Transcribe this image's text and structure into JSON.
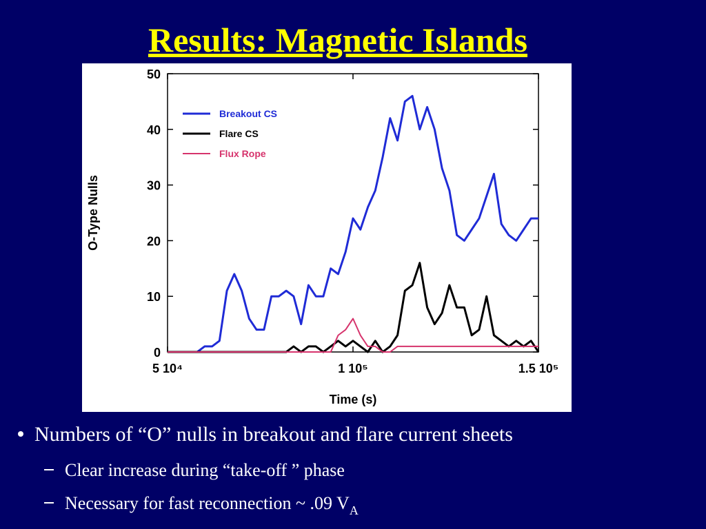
{
  "title": "Results: Magnetic Islands",
  "chart_data": {
    "type": "line",
    "xlabel": "Time (s)",
    "ylabel": "O-Type Nulls",
    "x": [
      50000,
      52000,
      54000,
      56000,
      58000,
      60000,
      62000,
      64000,
      66000,
      68000,
      70000,
      72000,
      74000,
      76000,
      78000,
      80000,
      82000,
      84000,
      86000,
      88000,
      90000,
      92000,
      94000,
      96000,
      98000,
      100000,
      102000,
      104000,
      106000,
      108000,
      110000,
      112000,
      114000,
      116000,
      118000,
      120000,
      122000,
      124000,
      126000,
      128000,
      130000,
      132000,
      134000,
      136000,
      138000,
      140000,
      142000,
      144000,
      146000,
      148000,
      150000
    ],
    "series": [
      {
        "name": "Breakout CS",
        "color": "#1f2bd6",
        "values": [
          0,
          0,
          0,
          0,
          0,
          1,
          1,
          2,
          11,
          14,
          11,
          6,
          4,
          4,
          10,
          10,
          11,
          10,
          5,
          12,
          10,
          10,
          15,
          14,
          18,
          24,
          22,
          26,
          29,
          35,
          42,
          38,
          45,
          46,
          40,
          44,
          40,
          33,
          29,
          21,
          20,
          22,
          24,
          28,
          32,
          23,
          21,
          20,
          22,
          24,
          24
        ]
      },
      {
        "name": "Flare CS",
        "color": "#000000",
        "values": [
          0,
          0,
          0,
          0,
          0,
          0,
          0,
          0,
          0,
          0,
          0,
          0,
          0,
          0,
          0,
          0,
          0,
          1,
          0,
          1,
          1,
          0,
          1,
          2,
          1,
          2,
          1,
          0,
          2,
          0,
          1,
          3,
          11,
          12,
          16,
          8,
          5,
          7,
          12,
          8,
          8,
          3,
          4,
          10,
          3,
          2,
          1,
          2,
          1,
          2,
          0
        ]
      },
      {
        "name": "Flux Rope",
        "color": "#d6336c",
        "values": [
          0,
          0,
          0,
          0,
          0,
          0,
          0,
          0,
          0,
          0,
          0,
          0,
          0,
          0,
          0,
          0,
          0,
          0,
          0,
          0,
          0,
          0,
          0,
          3,
          4,
          6,
          3,
          1,
          1,
          0,
          0,
          1,
          1,
          1,
          1,
          1,
          1,
          1,
          1,
          1,
          1,
          1,
          1,
          1,
          1,
          1,
          1,
          1,
          1,
          1,
          1
        ]
      }
    ],
    "xlim": [
      50000,
      150000
    ],
    "xticks": [
      {
        "value": 50000,
        "label": "5 10⁴"
      },
      {
        "value": 100000,
        "label": "1 10⁵"
      },
      {
        "value": 150000,
        "label": "1.5 10⁵"
      }
    ],
    "ylim": [
      0,
      50
    ],
    "yticks": [
      0,
      10,
      20,
      30,
      40,
      50
    ],
    "legend": "upper left"
  },
  "bullets": [
    {
      "text": "Numbers of “O” nulls in breakout and flare current sheets",
      "sub": [
        {
          "text": "Clear increase during “take-off ” phase"
        },
        {
          "text": "Necessary for fast reconnection ~ .09 V",
          "subscript": "A"
        }
      ]
    }
  ]
}
